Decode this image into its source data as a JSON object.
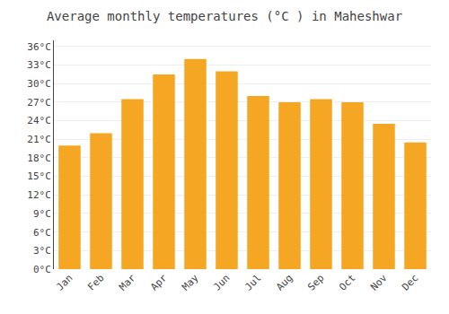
{
  "chart_data": {
    "type": "bar",
    "title": "Average monthly temperatures (°C ) in Maheshwar",
    "categories": [
      "Jan",
      "Feb",
      "Mar",
      "Apr",
      "May",
      "Jun",
      "Jul",
      "Aug",
      "Sep",
      "Oct",
      "Nov",
      "Dec"
    ],
    "values": [
      20,
      22,
      27.5,
      31.5,
      34,
      32,
      28,
      27,
      27.5,
      27,
      23.5,
      20.5
    ],
    "color": "#F5A623",
    "ylim": [
      0,
      37
    ],
    "yticks": [
      {
        "value": 0,
        "label": "0°C"
      },
      {
        "value": 3,
        "label": "3°C"
      },
      {
        "value": 6,
        "label": "6°C"
      },
      {
        "value": 9,
        "label": "9°C"
      },
      {
        "value": 12,
        "label": "12°C"
      },
      {
        "value": 15,
        "label": "15°C"
      },
      {
        "value": 18,
        "label": "18°C"
      },
      {
        "value": 21,
        "label": "21°C"
      },
      {
        "value": 24,
        "label": "24°C"
      },
      {
        "value": 27,
        "label": "27°C"
      },
      {
        "value": 30,
        "label": "30°C"
      },
      {
        "value": 33,
        "label": "33°C"
      },
      {
        "value": 36,
        "label": "36°C"
      }
    ],
    "grid": true
  }
}
